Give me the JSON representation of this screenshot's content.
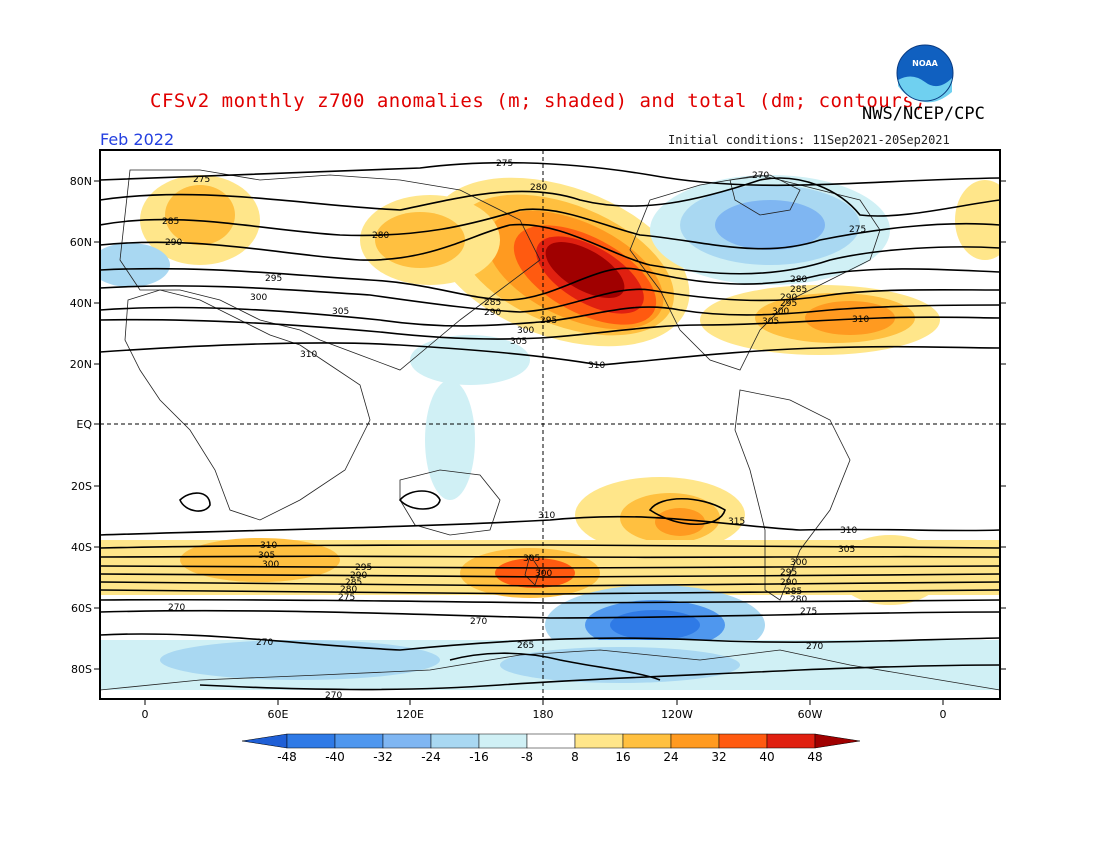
{
  "header": {
    "title": "CFSv2 monthly z700 anomalies (m; shaded) and total (dm; contours)",
    "agency": "NWS/NCEP/CPC",
    "period": "Feb 2022",
    "initial_conditions": "Initial conditions: 11Sep2021-20Sep2021",
    "logo_text": "NOAA"
  },
  "map": {
    "lat_labels": [
      "80N",
      "60N",
      "40N",
      "20N",
      "EQ",
      "20S",
      "40S",
      "60S",
      "80S"
    ],
    "lon_labels": [
      "0",
      "60E",
      "120E",
      "180",
      "120W",
      "60W",
      "0"
    ],
    "contour_labels": [
      "275",
      "280",
      "270",
      "285",
      "290",
      "295",
      "300",
      "305",
      "310",
      "275",
      "280",
      "285",
      "290",
      "295",
      "300",
      "305",
      "310",
      "305",
      "300",
      "295",
      "290",
      "285",
      "280",
      "275",
      "270",
      "310",
      "315",
      "310",
      "305",
      "300",
      "295",
      "290",
      "285",
      "280",
      "275",
      "270",
      "310",
      "305",
      "300",
      "295",
      "290",
      "285",
      "280",
      "275",
      "270",
      "265",
      "270",
      "270",
      "310",
      "300"
    ]
  },
  "colorbar": {
    "ticks": [
      "-48",
      "-40",
      "-32",
      "-24",
      "-16",
      "-8",
      "8",
      "16",
      "24",
      "32",
      "40",
      "48"
    ],
    "colors": [
      "#1f5fd6",
      "#2f7ae6",
      "#4f97ee",
      "#7fb6f2",
      "#a9d8f2",
      "#d0f0f5",
      "#ffffff",
      "#ffe68a",
      "#ffc040",
      "#ff9a20",
      "#ff5a10",
      "#e02010",
      "#a00000"
    ]
  }
}
